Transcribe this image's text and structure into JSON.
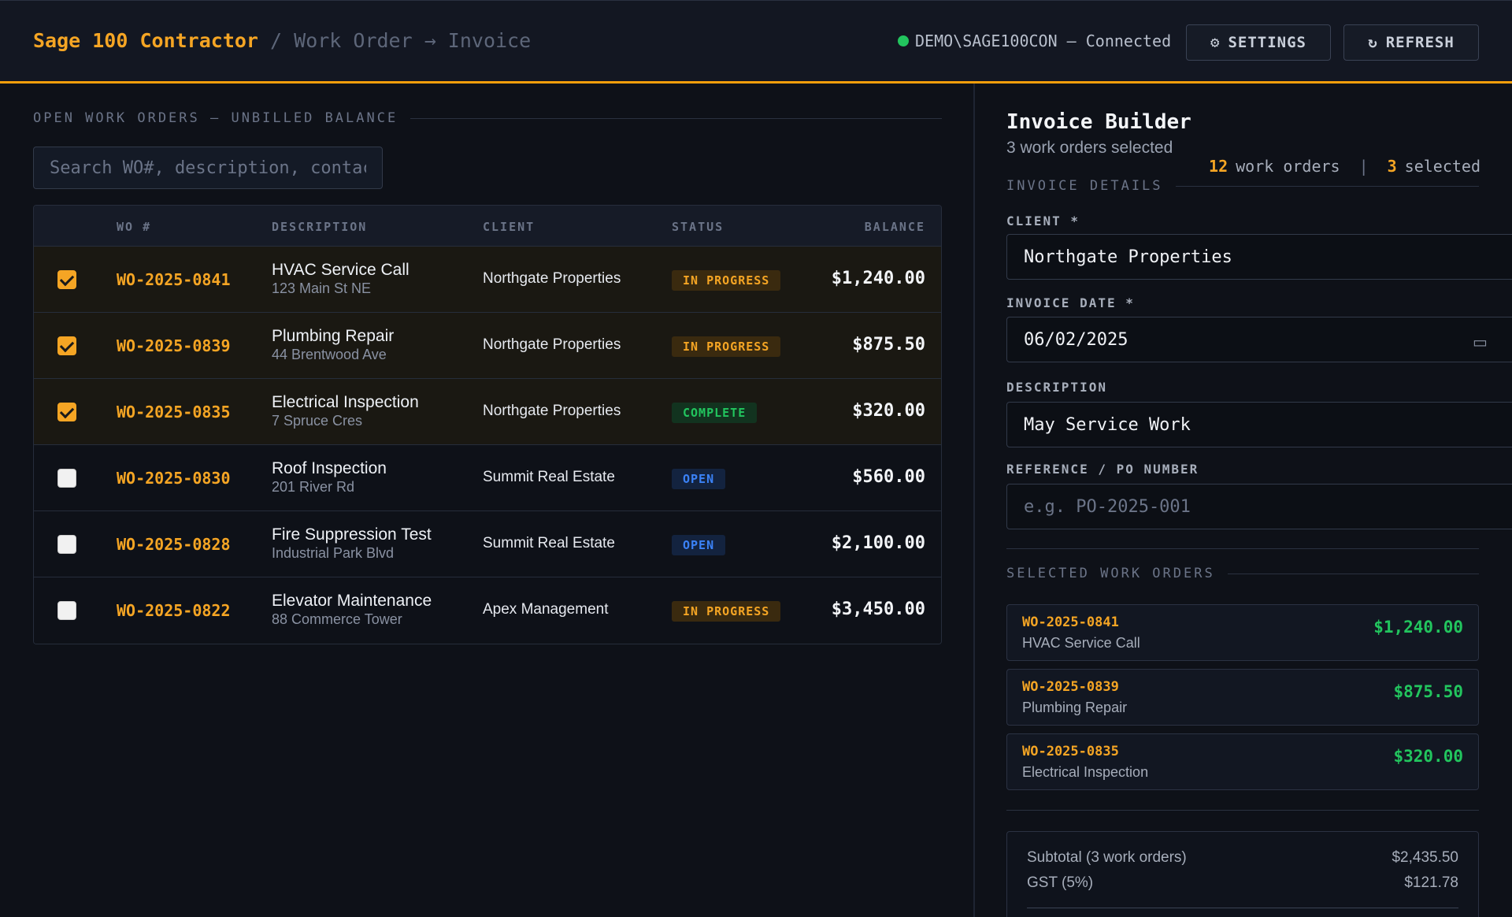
{
  "header": {
    "app_name": "Sage 100 Contractor",
    "breadcrumb": " / Work Order → Invoice",
    "connection": "DEMO\\SAGE100CON — Connected",
    "settings_label": "SETTINGS",
    "refresh_label": "REFRESH"
  },
  "left": {
    "section_title": "OPEN WORK ORDERS — UNBILLED BALANCE",
    "search_placeholder": "Search WO#, description, contact...",
    "count_total": "12",
    "count_total_label": "work orders",
    "count_selected": "3",
    "count_selected_label": "selected",
    "columns": [
      "WO #",
      "DESCRIPTION",
      "CLIENT",
      "STATUS",
      "BALANCE"
    ],
    "rows": [
      {
        "wo": "WO-2025-0841",
        "title": "HVAC Service Call",
        "address": "123 Main St NE",
        "client": "Northgate Properties",
        "status": "IN PROGRESS",
        "balance": "$1,240.00",
        "selected": true
      },
      {
        "wo": "WO-2025-0839",
        "title": "Plumbing Repair",
        "address": "44 Brentwood Ave",
        "client": "Northgate Properties",
        "status": "IN PROGRESS",
        "balance": "$875.50",
        "selected": true
      },
      {
        "wo": "WO-2025-0835",
        "title": "Electrical Inspection",
        "address": "7 Spruce Cres",
        "client": "Northgate Properties",
        "status": "COMPLETE",
        "balance": "$320.00",
        "selected": true
      },
      {
        "wo": "WO-2025-0830",
        "title": "Roof Inspection",
        "address": "201 River Rd",
        "client": "Summit Real Estate",
        "status": "OPEN",
        "balance": "$560.00",
        "selected": false
      },
      {
        "wo": "WO-2025-0828",
        "title": "Fire Suppression Test",
        "address": "Industrial Park Blvd",
        "client": "Summit Real Estate",
        "status": "OPEN",
        "balance": "$2,100.00",
        "selected": false
      },
      {
        "wo": "WO-2025-0822",
        "title": "Elevator Maintenance",
        "address": "88 Commerce Tower",
        "client": "Apex Management",
        "status": "IN PROGRESS",
        "balance": "$3,450.00",
        "selected": false
      }
    ]
  },
  "builder": {
    "title": "Invoice Builder",
    "subtitle": "3 work orders selected",
    "details_title": "INVOICE DETAILS",
    "client_label": "CLIENT *",
    "client_value": "Northgate Properties",
    "date_label": "INVOICE DATE *",
    "date_value": "06/02/2025",
    "description_label": "DESCRIPTION",
    "description_value": "May Service Work",
    "reference_label": "REFERENCE / PO NUMBER",
    "reference_placeholder": "e.g. PO-2025-001",
    "selected_title": "SELECTED WORK ORDERS",
    "selected": [
      {
        "wo": "WO-2025-0841",
        "title": "HVAC Service Call",
        "amount": "$1,240.00"
      },
      {
        "wo": "WO-2025-0839",
        "title": "Plumbing Repair",
        "amount": "$875.50"
      },
      {
        "wo": "WO-2025-0835",
        "title": "Electrical Inspection",
        "amount": "$320.00"
      }
    ],
    "subtotal_label": "Subtotal (3 work orders)",
    "subtotal_value": "$2,435.50",
    "gst_label": "GST (5%)",
    "gst_value": "$121.78"
  },
  "colors": {
    "accent": "#f5a524",
    "success": "#22c55e",
    "info": "#3b82f6",
    "background": "#0e1118"
  }
}
